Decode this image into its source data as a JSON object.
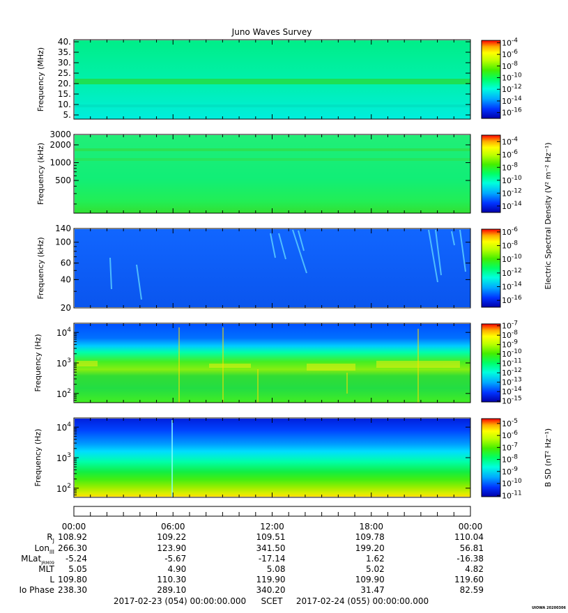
{
  "title": "Juno Waves Survey",
  "footer": {
    "start": "2017-02-23 (054) 00:00:00.000",
    "scet": "SCET",
    "end": "2017-02-24 (055) 00:00:00.000",
    "stamp": "UIOWA 20200306"
  },
  "chart_data": [
    {
      "type": "heatmap",
      "name": "panel-mhz",
      "ylabel": "Frequency (MHz)",
      "yscale": "linear",
      "ylim": [
        3.0,
        41.0
      ],
      "yticks": [
        {
          "v": 5,
          "label": "5."
        },
        {
          "v": 10,
          "label": "10."
        },
        {
          "v": 15,
          "label": "15."
        },
        {
          "v": 20,
          "label": "20."
        },
        {
          "v": 25,
          "label": "25."
        },
        {
          "v": 30,
          "label": "30."
        },
        {
          "v": 35,
          "label": "35."
        },
        {
          "v": 40,
          "label": "40."
        }
      ],
      "colorbar": {
        "exps": [
          "-4",
          "-6",
          "-8",
          "-10",
          "-12",
          "-14",
          "-16"
        ],
        "range": [
          -3.6,
          -17
        ],
        "title_lines": []
      }
    },
    {
      "type": "heatmap",
      "name": "panel-khz-high",
      "ylabel": "Frequency (kHz)",
      "yscale": "log",
      "ylim": [
        140,
        3000
      ],
      "yticks": [
        {
          "v": 500,
          "label": "500"
        },
        {
          "v": 1000,
          "label": "1000"
        },
        {
          "v": 2000,
          "label": "2000"
        },
        {
          "v": 3000,
          "label": "3000"
        }
      ],
      "colorbar": {
        "exps": [
          "-4",
          "-6",
          "-8",
          "-10",
          "-12",
          "-14"
        ],
        "range": [
          -3.0,
          -15.0
        ],
        "title_lines": []
      }
    },
    {
      "type": "heatmap",
      "name": "panel-khz-low",
      "ylabel": "Frequency (kHz)",
      "yscale": "log",
      "ylim": [
        20,
        140
      ],
      "yticks": [
        {
          "v": 20,
          "label": "20"
        },
        {
          "v": 40,
          "label": "40"
        },
        {
          "v": 60,
          "label": "60"
        },
        {
          "v": 100,
          "label": "100"
        },
        {
          "v": 140,
          "label": "140"
        }
      ],
      "colorbar": {
        "exps": [
          "-6",
          "-8",
          "-10",
          "-12",
          "-14",
          "-16"
        ],
        "range": [
          -5.6,
          -17.0
        ],
        "title_lines": []
      }
    },
    {
      "type": "heatmap",
      "name": "panel-hz-e",
      "ylabel": "Frequency (Hz)",
      "yscale": "log",
      "ylim": [
        50,
        20000
      ],
      "yticks": [
        {
          "v": 100,
          "base": "10",
          "exp": "2"
        },
        {
          "v": 1000,
          "base": "10",
          "exp": "3"
        },
        {
          "v": 10000,
          "base": "10",
          "exp": "4"
        }
      ],
      "colorbar": {
        "exps": [
          "-7",
          "-8",
          "-9",
          "-10",
          "-11",
          "-12",
          "-13",
          "-14",
          "-15"
        ],
        "range": [
          -6.8,
          -15.1
        ],
        "title_lines": []
      }
    },
    {
      "type": "heatmap",
      "name": "panel-hz-b",
      "ylabel": "Frequency (Hz)",
      "yscale": "log",
      "ylim": [
        50,
        20000
      ],
      "yticks": [
        {
          "v": 100,
          "base": "10",
          "exp": "2"
        },
        {
          "v": 1000,
          "base": "10",
          "exp": "3"
        },
        {
          "v": 10000,
          "base": "10",
          "exp": "4"
        }
      ],
      "colorbar": {
        "exps": [
          "-5",
          "-6",
          "-7",
          "-8",
          "-9",
          "-10",
          "-11"
        ],
        "range": [
          -4.6,
          -11.1
        ],
        "title_lines": []
      }
    }
  ],
  "colorbar_titles": {
    "electric": "Electric Spectral Density (V² m⁻² Hz⁻¹)",
    "magnetic": "B SD (nT² Hz⁻¹)"
  },
  "ephemeris": {
    "times": [
      "00:00",
      "06:00",
      "12:00",
      "18:00",
      "00:00"
    ],
    "rows": [
      {
        "label": "R",
        "sub": "J",
        "values": [
          "108.92",
          "109.22",
          "109.51",
          "109.78",
          "110.04"
        ]
      },
      {
        "label": "Lon",
        "sub": "III",
        "values": [
          "266.30",
          "123.90",
          "341.50",
          "199.20",
          "56.81"
        ]
      },
      {
        "label": "MLat",
        "sub": "JRM09",
        "values": [
          "-5.24",
          "-5.67",
          "-17.14",
          "1.62",
          "-16.38"
        ]
      },
      {
        "label": "MLT",
        "sub": "",
        "values": [
          "5.05",
          "4.90",
          "5.08",
          "5.02",
          "4.82"
        ]
      },
      {
        "label": "L",
        "sub": "",
        "values": [
          "109.80",
          "110.30",
          "119.90",
          "109.90",
          "119.60"
        ]
      },
      {
        "label": "Io Phase",
        "sub": "",
        "values": [
          "238.30",
          "289.10",
          "340.20",
          "31.47",
          "82.59"
        ]
      }
    ]
  },
  "colors": {
    "axis": "#000000",
    "colormap": [
      "#0000aa",
      "#0033ff",
      "#00aaff",
      "#00ffdd",
      "#00ff66",
      "#33ee00",
      "#aaff00",
      "#ffff00",
      "#ffaa00",
      "#ff4400",
      "#ff0000"
    ]
  }
}
